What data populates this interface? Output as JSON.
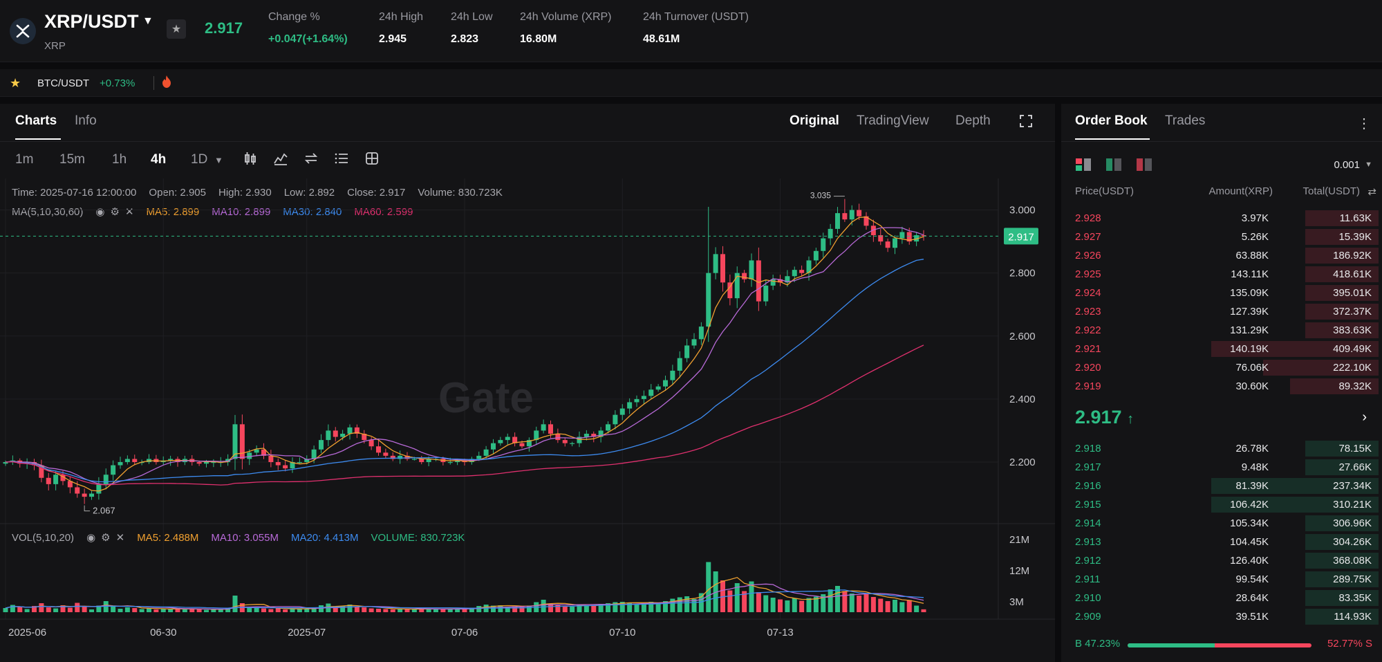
{
  "header": {
    "pair": "XRP/USDT",
    "base": "XRP",
    "last_price": "2.917",
    "stats": [
      {
        "label": "Change %",
        "value": "+0.047(+1.64%)",
        "color": "green"
      },
      {
        "label": "24h High",
        "value": "2.945"
      },
      {
        "label": "24h Low",
        "value": "2.823"
      },
      {
        "label": "24h Volume (XRP)",
        "value": "16.80M"
      },
      {
        "label": "24h Turnover (USDT)",
        "value": "48.61M"
      }
    ]
  },
  "favorites": {
    "pair": "BTC/USDT",
    "change": "+0.73%"
  },
  "chart_panel": {
    "tabs": [
      "Charts",
      "Info"
    ],
    "views": [
      "Original",
      "TradingView",
      "Depth"
    ],
    "intervals": [
      "1m",
      "15m",
      "1h",
      "4h",
      "1D"
    ],
    "active_interval": "4h",
    "ohlc": {
      "time": "Time: 2025-07-16 12:00:00",
      "open": "Open: 2.905",
      "high": "High: 2.930",
      "low": "Low: 2.892",
      "close": "Close: 2.917",
      "volume": "Volume: 830.723K"
    },
    "ma_line": {
      "label": "MA(5,10,30,60)",
      "ma5": "MA5: 2.899",
      "ma10": "MA10: 2.899",
      "ma30": "MA30: 2.840",
      "ma60": "MA60: 2.599"
    },
    "vol_line": {
      "label": "VOL(5,10,20)",
      "ma5": "MA5: 2.488M",
      "ma10": "MA10: 3.055M",
      "ma20": "MA20: 4.413M",
      "volume": "VOLUME: 830.723K"
    },
    "watermark": "Gate",
    "colors": {
      "up": "#2ebd85",
      "down": "#f6465d",
      "ma5": "#f0a030",
      "ma10": "#b86ad8",
      "ma30": "#3d8bf0",
      "ma60": "#e0306e"
    }
  },
  "chart_data": {
    "type": "candlestick",
    "y_ticks": [
      "3.000",
      "2.800",
      "2.600",
      "2.400",
      "2.200"
    ],
    "y_tick_values": [
      3.0,
      2.8,
      2.6,
      2.4,
      2.2
    ],
    "ylim": [
      2.02,
      3.1
    ],
    "x_ticks": [
      "2025-06",
      "06-30",
      "2025-07",
      "07-06",
      "07-10",
      "07-13"
    ],
    "x_tick_index": [
      0,
      22,
      42,
      64,
      86,
      108
    ],
    "current_price": "2.917",
    "high_label": "3.035",
    "high_label_index": 117,
    "low_label": "2.067",
    "low_label_index": 11,
    "vol_ticks": [
      "21M",
      "12M",
      "3M"
    ],
    "vol_tick_values": [
      21,
      12,
      3
    ],
    "vol_max": 22,
    "closes": [
      2.2,
      2.205,
      2.195,
      2.2,
      2.19,
      2.15,
      2.13,
      2.16,
      2.14,
      2.12,
      2.1,
      2.09,
      2.1,
      2.13,
      2.16,
      2.19,
      2.2,
      2.21,
      2.2,
      2.2,
      2.21,
      2.2,
      2.205,
      2.21,
      2.2,
      2.21,
      2.2,
      2.195,
      2.2,
      2.2,
      2.2,
      2.21,
      2.32,
      2.21,
      2.23,
      2.24,
      2.22,
      2.2,
      2.19,
      2.18,
      2.2,
      2.2,
      2.21,
      2.24,
      2.27,
      2.3,
      2.28,
      2.29,
      2.31,
      2.29,
      2.27,
      2.25,
      2.23,
      2.22,
      2.21,
      2.22,
      2.21,
      2.21,
      2.2,
      2.21,
      2.21,
      2.2,
      2.2,
      2.205,
      2.2,
      2.21,
      2.22,
      2.24,
      2.26,
      2.27,
      2.28,
      2.26,
      2.25,
      2.27,
      2.3,
      2.32,
      2.29,
      2.27,
      2.26,
      2.26,
      2.28,
      2.29,
      2.28,
      2.3,
      2.32,
      2.35,
      2.37,
      2.39,
      2.4,
      2.41,
      2.43,
      2.44,
      2.46,
      2.49,
      2.53,
      2.57,
      2.59,
      2.63,
      2.8,
      2.86,
      2.77,
      2.72,
      2.8,
      2.78,
      2.84,
      2.71,
      2.76,
      2.78,
      2.77,
      2.79,
      2.81,
      2.8,
      2.84,
      2.87,
      2.91,
      2.94,
      2.99,
      2.97,
      3.0,
      2.98,
      2.95,
      2.92,
      2.9,
      2.88,
      2.91,
      2.93,
      2.9,
      2.92,
      2.917
    ],
    "volumes": [
      1.2,
      2.1,
      1.5,
      0.9,
      1.8,
      2.6,
      1.4,
      1.1,
      2.0,
      1.3,
      2.7,
      1.6,
      0.8,
      1.9,
      3.2,
      1.7,
      1.0,
      1.4,
      1.2,
      0.9,
      1.1,
      0.8,
      1.0,
      0.9,
      1.2,
      0.8,
      1.0,
      0.9,
      0.7,
      0.8,
      0.9,
      1.1,
      4.8,
      2.6,
      1.5,
      1.3,
      1.1,
      0.9,
      1.2,
      0.8,
      1.0,
      0.9,
      1.1,
      1.4,
      2.0,
      2.5,
      1.3,
      1.8,
      2.2,
      1.6,
      1.4,
      1.1,
      1.0,
      0.9,
      0.8,
      1.0,
      0.9,
      0.8,
      1.1,
      0.9,
      1.0,
      0.8,
      0.9,
      1.0,
      1.2,
      1.3,
      1.8,
      2.2,
      1.9,
      2.0,
      1.6,
      1.7,
      1.5,
      1.9,
      2.9,
      3.6,
      2.4,
      2.0,
      1.7,
      1.6,
      2.3,
      2.0,
      1.9,
      2.4,
      2.6,
      2.9,
      3.0,
      2.7,
      2.5,
      2.6,
      3.0,
      2.8,
      3.2,
      3.9,
      4.3,
      4.6,
      3.8,
      5.5,
      14.5,
      11.8,
      9.2,
      6.3,
      8.4,
      6.1,
      8.9,
      5.8,
      4.9,
      4.2,
      3.7,
      3.4,
      4.0,
      3.3,
      4.1,
      4.5,
      5.2,
      6.6,
      7.6,
      6.1,
      5.4,
      4.8,
      5.5,
      4.4,
      3.9,
      3.2,
      3.6,
      2.9,
      3.5,
      1.9,
      0.83
    ]
  },
  "order_book": {
    "tabs": [
      "Order Book",
      "Trades"
    ],
    "precision": "0.001",
    "columns": [
      "Price(USDT)",
      "Amount(XRP)",
      "Total(USDT)"
    ],
    "asks": [
      {
        "price": "2.928",
        "amount": "3.97K",
        "total": "11.63K",
        "depth": 0.24
      },
      {
        "price": "2.927",
        "amount": "5.26K",
        "total": "15.39K",
        "depth": 0.24
      },
      {
        "price": "2.926",
        "amount": "63.88K",
        "total": "186.92K",
        "depth": 0.24
      },
      {
        "price": "2.925",
        "amount": "143.11K",
        "total": "418.61K",
        "depth": 0.24
      },
      {
        "price": "2.924",
        "amount": "135.09K",
        "total": "395.01K",
        "depth": 0.24
      },
      {
        "price": "2.923",
        "amount": "127.39K",
        "total": "372.37K",
        "depth": 0.24
      },
      {
        "price": "2.922",
        "amount": "131.29K",
        "total": "383.63K",
        "depth": 0.24
      },
      {
        "price": "2.921",
        "amount": "140.19K",
        "total": "409.49K",
        "depth": 0.55
      },
      {
        "price": "2.920",
        "amount": "76.06K",
        "total": "222.10K",
        "depth": 0.38
      },
      {
        "price": "2.919",
        "amount": "30.60K",
        "total": "89.32K",
        "depth": 0.29
      }
    ],
    "mid_price": "2.917",
    "bids": [
      {
        "price": "2.918",
        "amount": "26.78K",
        "total": "78.15K",
        "depth": 0.24
      },
      {
        "price": "2.917",
        "amount": "9.48K",
        "total": "27.66K",
        "depth": 0.24
      },
      {
        "price": "2.916",
        "amount": "81.39K",
        "total": "237.34K",
        "depth": 0.55
      },
      {
        "price": "2.915",
        "amount": "106.42K",
        "total": "310.21K",
        "depth": 0.55
      },
      {
        "price": "2.914",
        "amount": "105.34K",
        "total": "306.96K",
        "depth": 0.24
      },
      {
        "price": "2.913",
        "amount": "104.45K",
        "total": "304.26K",
        "depth": 0.24
      },
      {
        "price": "2.912",
        "amount": "126.40K",
        "total": "368.08K",
        "depth": 0.24
      },
      {
        "price": "2.911",
        "amount": "99.54K",
        "total": "289.75K",
        "depth": 0.24
      },
      {
        "price": "2.910",
        "amount": "28.64K",
        "total": "83.35K",
        "depth": 0.24
      },
      {
        "price": "2.909",
        "amount": "39.51K",
        "total": "114.93K",
        "depth": 0.24
      }
    ],
    "buy_ratio": "B 47.23%",
    "sell_ratio": "52.77% S",
    "buy_fraction": 0.4723
  }
}
